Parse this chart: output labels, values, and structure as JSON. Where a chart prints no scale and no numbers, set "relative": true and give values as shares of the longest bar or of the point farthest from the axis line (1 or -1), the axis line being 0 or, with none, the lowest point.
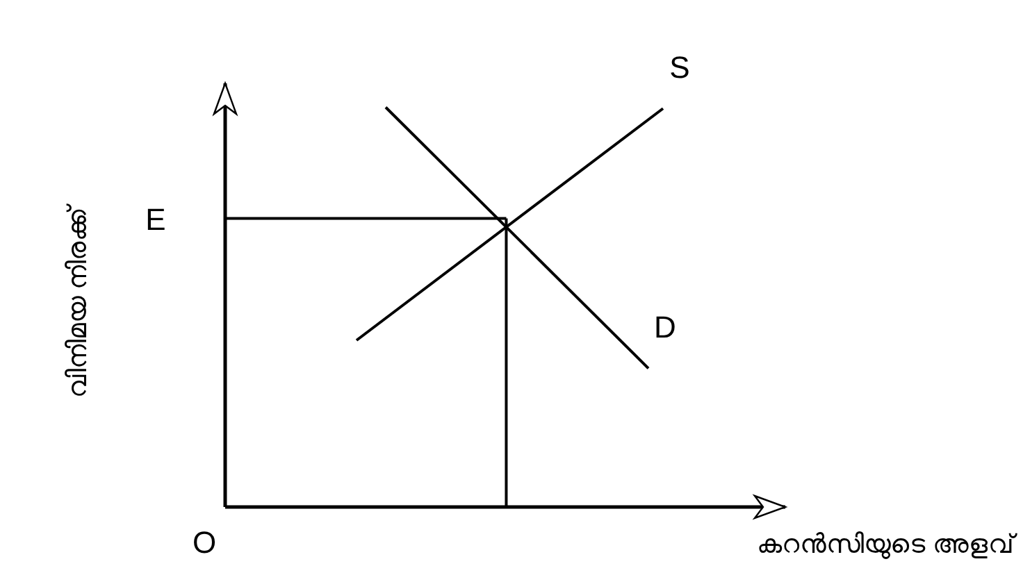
{
  "chart_data": {
    "type": "line",
    "relative": true,
    "xlabel": "കറൻസിയുടെ അളവ്",
    "ylabel": "വിനിമയ നിരക്ക്",
    "categories": [
      null,
      null,
      null,
      null,
      null,
      null,
      null,
      null,
      null,
      null,
      null,
      null,
      null,
      null,
      null,
      null,
      null,
      null,
      null,
      null,
      null,
      null,
      null,
      null,
      null,
      null,
      null,
      null,
      null,
      null,
      null,
      null,
      null,
      null,
      null,
      null,
      null,
      null,
      null
    ],
    "grid": false,
    "legend": false,
    "marker": "none",
    "line_style": "solid",
    "series": [
      {
        "name": "S",
        "color": "#000000",
        "values": [
          null,
          null,
          null,
          null,
          null,
          null,
          null,
          null,
          null,
          0.417,
          null,
          null,
          null,
          null,
          null,
          null,
          null,
          null,
          null,
          null,
          null,
          null,
          null,
          null,
          null,
          null,
          null,
          null,
          null,
          null,
          0.997,
          null,
          null,
          null,
          null,
          null,
          null,
          null,
          null
        ]
      },
      {
        "name": "D",
        "color": "#000000",
        "values": [
          null,
          null,
          null,
          null,
          null,
          null,
          null,
          null,
          null,
          null,
          null,
          1,
          null,
          null,
          null,
          null,
          null,
          null,
          null,
          null,
          null,
          null,
          null,
          null,
          null,
          null,
          null,
          null,
          null,
          0.347,
          null,
          null,
          null,
          null,
          null,
          null,
          null,
          null,
          null
        ]
      }
    ],
    "ref_lines": [
      {
        "axis": "y",
        "value": 0.722,
        "label": "E",
        "color": "#000000"
      }
    ],
    "annotations": [
      "O"
    ]
  }
}
